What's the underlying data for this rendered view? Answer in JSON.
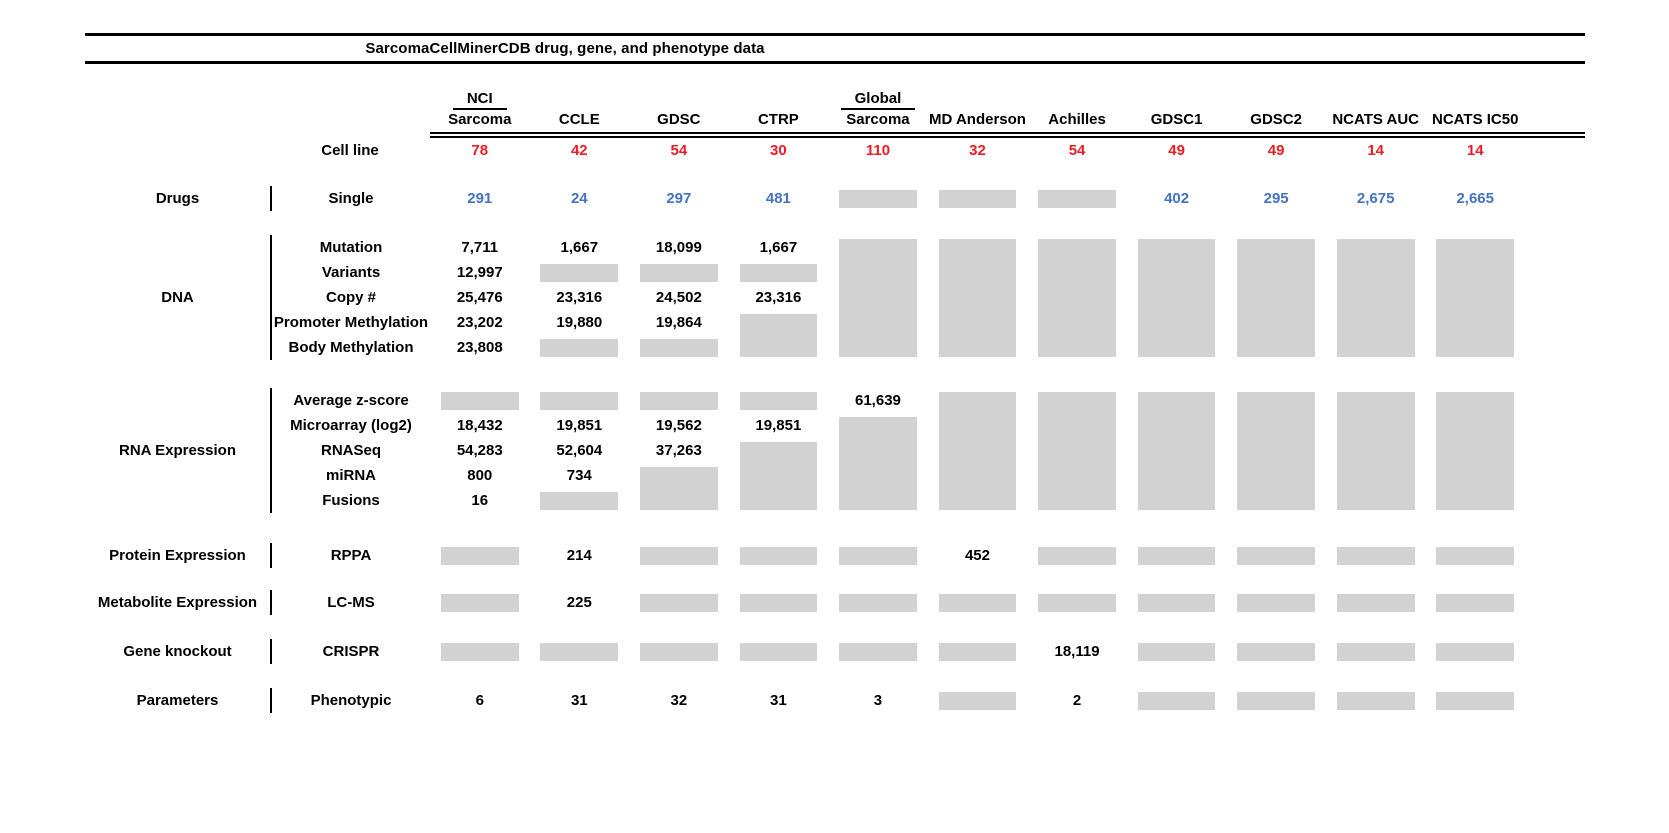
{
  "chart_data": {
    "type": "table",
    "title": "SarcomaCellMinerCDB drug, gene, and phenotype data",
    "legend_note_missing": "",
    "colors": {
      "cell_line_count": "#ed1c24",
      "drug_count": "#4472c4",
      "missing_block": "#d2d2d2",
      "text": "#000000"
    },
    "column_headers": [
      {
        "top": "NCI",
        "bottom": "Sarcoma"
      },
      {
        "top": "",
        "bottom": "CCLE"
      },
      {
        "top": "",
        "bottom": "GDSC"
      },
      {
        "top": "",
        "bottom": "CTRP"
      },
      {
        "top": "Global",
        "bottom": "Sarcoma"
      },
      {
        "top": "",
        "bottom": "MD Anderson"
      },
      {
        "top": "",
        "bottom": "Achilles"
      },
      {
        "top": "",
        "bottom": "GDSC1"
      },
      {
        "top": "",
        "bottom": "GDSC2"
      },
      {
        "top": "",
        "bottom": "NCATS AUC"
      },
      {
        "top": "",
        "bottom": "NCATS IC50"
      }
    ],
    "cell_line_row": {
      "label": "Cell line",
      "values": [
        "78",
        "42",
        "54",
        "30",
        "110",
        "32",
        "54",
        "49",
        "49",
        "14",
        "14"
      ]
    },
    "sections": [
      {
        "group": "Drugs",
        "value_color": "#4472c4",
        "rows": [
          {
            "label": "Single",
            "values": [
              "291",
              "24",
              "297",
              "481",
              "",
              "",
              "",
              "402",
              "295",
              "2,675",
              "2,665"
            ]
          }
        ]
      },
      {
        "group": "DNA",
        "value_color": "#000000",
        "rows": [
          {
            "label": "Mutation",
            "values": [
              "7,711",
              "1,667",
              "18,099",
              "1,667",
              "",
              "",
              "",
              "",
              "",
              "",
              ""
            ]
          },
          {
            "label": "Variants",
            "values": [
              "12,997",
              "",
              "",
              "",
              "",
              "",
              "",
              "",
              "",
              "",
              ""
            ]
          },
          {
            "label": "Copy #",
            "values": [
              "25,476",
              "23,316",
              "24,502",
              "23,316",
              "",
              "",
              "",
              "",
              "",
              "",
              ""
            ]
          },
          {
            "label": "Promoter Methylation",
            "values": [
              "23,202",
              "19,880",
              "19,864",
              "",
              "",
              "",
              "",
              "",
              "",
              "",
              ""
            ]
          },
          {
            "label": "Body Methylation",
            "values": [
              "23,808",
              "",
              "",
              "",
              "",
              "",
              "",
              "",
              "",
              "",
              ""
            ]
          }
        ]
      },
      {
        "group": "RNA Expression",
        "value_color": "#000000",
        "rows": [
          {
            "label": "Average z-score",
            "values": [
              "",
              "",
              "",
              "",
              "61,639",
              "",
              "",
              "",
              "",
              "",
              ""
            ]
          },
          {
            "label": "Microarray (log2)",
            "values": [
              "18,432",
              "19,851",
              "19,562",
              "19,851",
              "",
              "",
              "",
              "",
              "",
              "",
              ""
            ]
          },
          {
            "label": "RNASeq",
            "values": [
              "54,283",
              "52,604",
              "37,263",
              "",
              "",
              "",
              "",
              "",
              "",
              "",
              ""
            ]
          },
          {
            "label": "miRNA",
            "values": [
              "800",
              "734",
              "",
              "",
              "",
              "",
              "",
              "",
              "",
              "",
              ""
            ]
          },
          {
            "label": "Fusions",
            "values": [
              "16",
              "",
              "",
              "",
              "",
              "",
              "",
              "",
              "",
              "",
              ""
            ]
          }
        ]
      },
      {
        "group": "Protein Expression",
        "value_color": "#000000",
        "rows": [
          {
            "label": "RPPA",
            "values": [
              "",
              "214",
              "",
              "",
              "",
              "452",
              "",
              "",
              "",
              "",
              ""
            ]
          }
        ]
      },
      {
        "group": "Metabolite Expression",
        "value_color": "#000000",
        "rows": [
          {
            "label": "LC-MS",
            "values": [
              "",
              "225",
              "",
              "",
              "",
              "",
              "",
              "",
              "",
              "",
              ""
            ]
          }
        ]
      },
      {
        "group": "Gene knockout",
        "value_color": "#000000",
        "rows": [
          {
            "label": "CRISPR",
            "values": [
              "",
              "",
              "",
              "",
              "",
              "",
              "18,119",
              "",
              "",
              "",
              ""
            ]
          }
        ]
      },
      {
        "group": "Parameters",
        "value_color": "#000000",
        "rows": [
          {
            "label": "Phenotypic",
            "values": [
              "6",
              "31",
              "32",
              "31",
              "3",
              "",
              "2",
              "",
              "",
              "",
              ""
            ]
          }
        ]
      }
    ]
  }
}
